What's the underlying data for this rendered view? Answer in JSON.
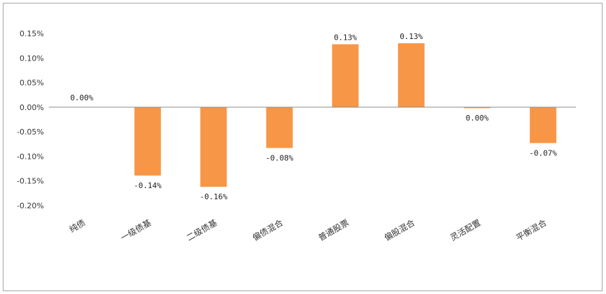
{
  "chart_data": {
    "type": "bar",
    "title": "",
    "xlabel": "",
    "ylabel": "",
    "categories": [
      "纯债",
      "一级债基",
      "二级债基",
      "偏债混合",
      "普通股票",
      "偏股混合",
      "灵活配置",
      "平衡混合"
    ],
    "values": [
      0.0,
      -0.139,
      -0.162,
      -0.083,
      0.128,
      0.13,
      -0.002,
      -0.073
    ],
    "data_labels": [
      "0.00%",
      "-0.14%",
      "-0.16%",
      "-0.08%",
      "0.13%",
      "0.13%",
      "0.00%",
      "-0.07%"
    ],
    "ylim": [
      -0.2,
      0.15
    ],
    "yticks": [
      0.15,
      0.1,
      0.05,
      0.0,
      -0.05,
      -0.1,
      -0.15,
      -0.2
    ],
    "ytick_labels": [
      "0.15%",
      "0.10%",
      "0.05%",
      "0.00%",
      "-0.05%",
      "-0.10%",
      "-0.15%",
      "-0.20%"
    ],
    "bar_color": "#f79646",
    "grid": false,
    "legend": "none"
  }
}
